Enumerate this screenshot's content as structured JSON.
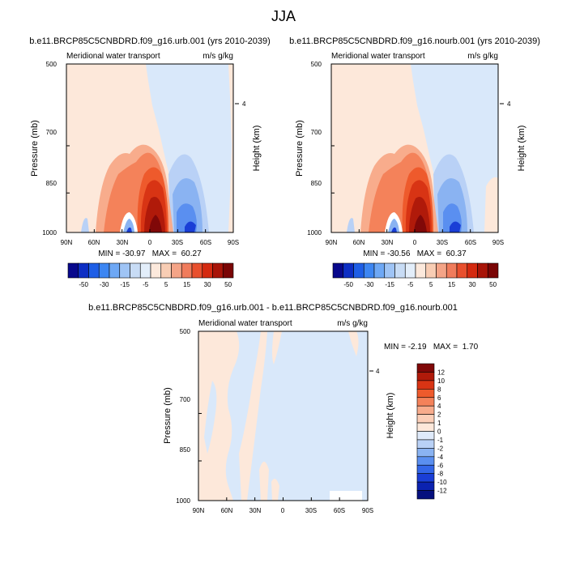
{
  "page_title": "JJA",
  "chart_data": [
    {
      "type": "heatmap",
      "title": "b.e11.BRCP85C5CNBDRD.f09_g16.urb.001 (yrs 2010-2039)",
      "left_label": "Meridional water transport",
      "right_label": "m/s g/kg",
      "xlabel": "",
      "ylabel": "Pressure (mb)",
      "y2label": "Height (km)",
      "x_ticks": [
        "90N",
        "60N",
        "30N",
        "0",
        "30S",
        "60S",
        "90S"
      ],
      "y_ticks": [
        "500",
        "700",
        "850",
        "1000"
      ],
      "y_tick_values": [
        500,
        700,
        850,
        1000
      ],
      "y2_ticks": [
        "4"
      ],
      "y2_tick_values": [
        600
      ],
      "xlim": [
        -90,
        90
      ],
      "ylim": [
        1000,
        500
      ],
      "stats": "MIN = -30.97   MAX =  60.27",
      "min": -30.97,
      "max": 60.27
    },
    {
      "type": "heatmap",
      "title": "b.e11.BRCP85C5CNBDRD.f09_g16.nourb.001 (yrs 2010-2039)",
      "left_label": "Meridional water transport",
      "right_label": "m/s g/kg",
      "xlabel": "",
      "ylabel": "Pressure (mb)",
      "y2label": "Height (km)",
      "x_ticks": [
        "90N",
        "60N",
        "30N",
        "0",
        "30S",
        "60S",
        "90S"
      ],
      "y_ticks": [
        "500",
        "700",
        "850",
        "1000"
      ],
      "y_tick_values": [
        500,
        700,
        850,
        1000
      ],
      "y2_ticks": [
        "4"
      ],
      "y2_tick_values": [
        600
      ],
      "xlim": [
        -90,
        90
      ],
      "ylim": [
        1000,
        500
      ],
      "stats": "MIN = -30.56   MAX =  60.37",
      "min": -30.56,
      "max": 60.37
    },
    {
      "type": "heatmap",
      "title": "b.e11.BRCP85C5CNBDRD.f09_g16.urb.001 - b.e11.BRCP85C5CNBDRD.f09_g16.nourb.001",
      "left_label": "Meridional water transport",
      "right_label": "m/s g/kg",
      "xlabel": "",
      "ylabel": "Pressure (mb)",
      "y2label": "Height (km)",
      "x_ticks": [
        "90N",
        "60N",
        "30N",
        "0",
        "30S",
        "60S",
        "90S"
      ],
      "y_ticks": [
        "500",
        "700",
        "850",
        "1000"
      ],
      "y_tick_values": [
        500,
        700,
        850,
        1000
      ],
      "y2_ticks": [
        "4"
      ],
      "y2_tick_values": [
        600
      ],
      "xlim": [
        -90,
        90
      ],
      "ylim": [
        1000,
        500
      ],
      "stats": "MIN = -2.19   MAX =  1.70",
      "min": -2.19,
      "max": 1.7
    }
  ],
  "colorbar_top": {
    "labels": [
      "-50",
      "-30",
      "-15",
      "-5",
      "5",
      "15",
      "30",
      "50"
    ],
    "colors": [
      "#08088c",
      "#0d2ec4",
      "#1e5ee6",
      "#3d86f2",
      "#6ea8f5",
      "#9fc4f5",
      "#c8dcf5",
      "#e3eefa",
      "#fce9dc",
      "#f8cdb4",
      "#f4a487",
      "#f07c5c",
      "#e8502e",
      "#d42a10",
      "#a81408",
      "#7a0505"
    ]
  },
  "colorbar_diff": {
    "labels": [
      "12",
      "10",
      "8",
      "6",
      "4",
      "2",
      "1",
      "0",
      "-1",
      "-2",
      "-4",
      "-6",
      "-8",
      "-10",
      "-12"
    ],
    "colors": [
      "#800808",
      "#b01a0a",
      "#d83414",
      "#ee5a2c",
      "#f4825a",
      "#f8ac8c",
      "#fccfb8",
      "#fde8da",
      "#dfeafa",
      "#b9d1f6",
      "#8ab3f2",
      "#5a8ff0",
      "#3366e8",
      "#1a3ed6",
      "#0b22b0",
      "#06107e"
    ]
  },
  "colors": {
    "positive_weak": "#fde8da",
    "negative_weak": "#d9e8fa"
  }
}
